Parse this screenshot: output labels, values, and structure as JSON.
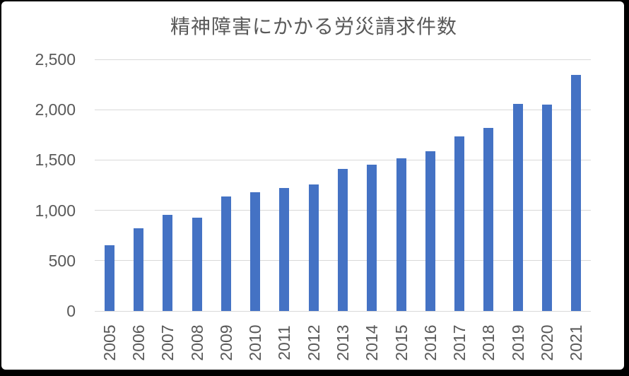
{
  "frame": {
    "background_color": "#000000",
    "card_background_color": "#ffffff"
  },
  "chart_data": {
    "type": "bar",
    "title": "精神障害にかかる労災請求件数",
    "categories": [
      "2005",
      "2006",
      "2007",
      "2008",
      "2009",
      "2010",
      "2011",
      "2012",
      "2013",
      "2014",
      "2015",
      "2016",
      "2017",
      "2018",
      "2019",
      "2020",
      "2021"
    ],
    "values": [
      656,
      819,
      952,
      927,
      1136,
      1181,
      1222,
      1257,
      1409,
      1456,
      1515,
      1586,
      1732,
      1820,
      2060,
      2051,
      2346
    ],
    "xlabel": "",
    "ylabel": "",
    "ylim": [
      0,
      2500
    ],
    "ytick_interval": 500,
    "ytick_labels": [
      "0",
      "500",
      "1,000",
      "1,500",
      "2,000",
      "2,500"
    ],
    "grid": true,
    "legend": false,
    "bar_color": "#4472C4",
    "gridline_color": "#D9D9D9",
    "text_color": "#595959"
  }
}
